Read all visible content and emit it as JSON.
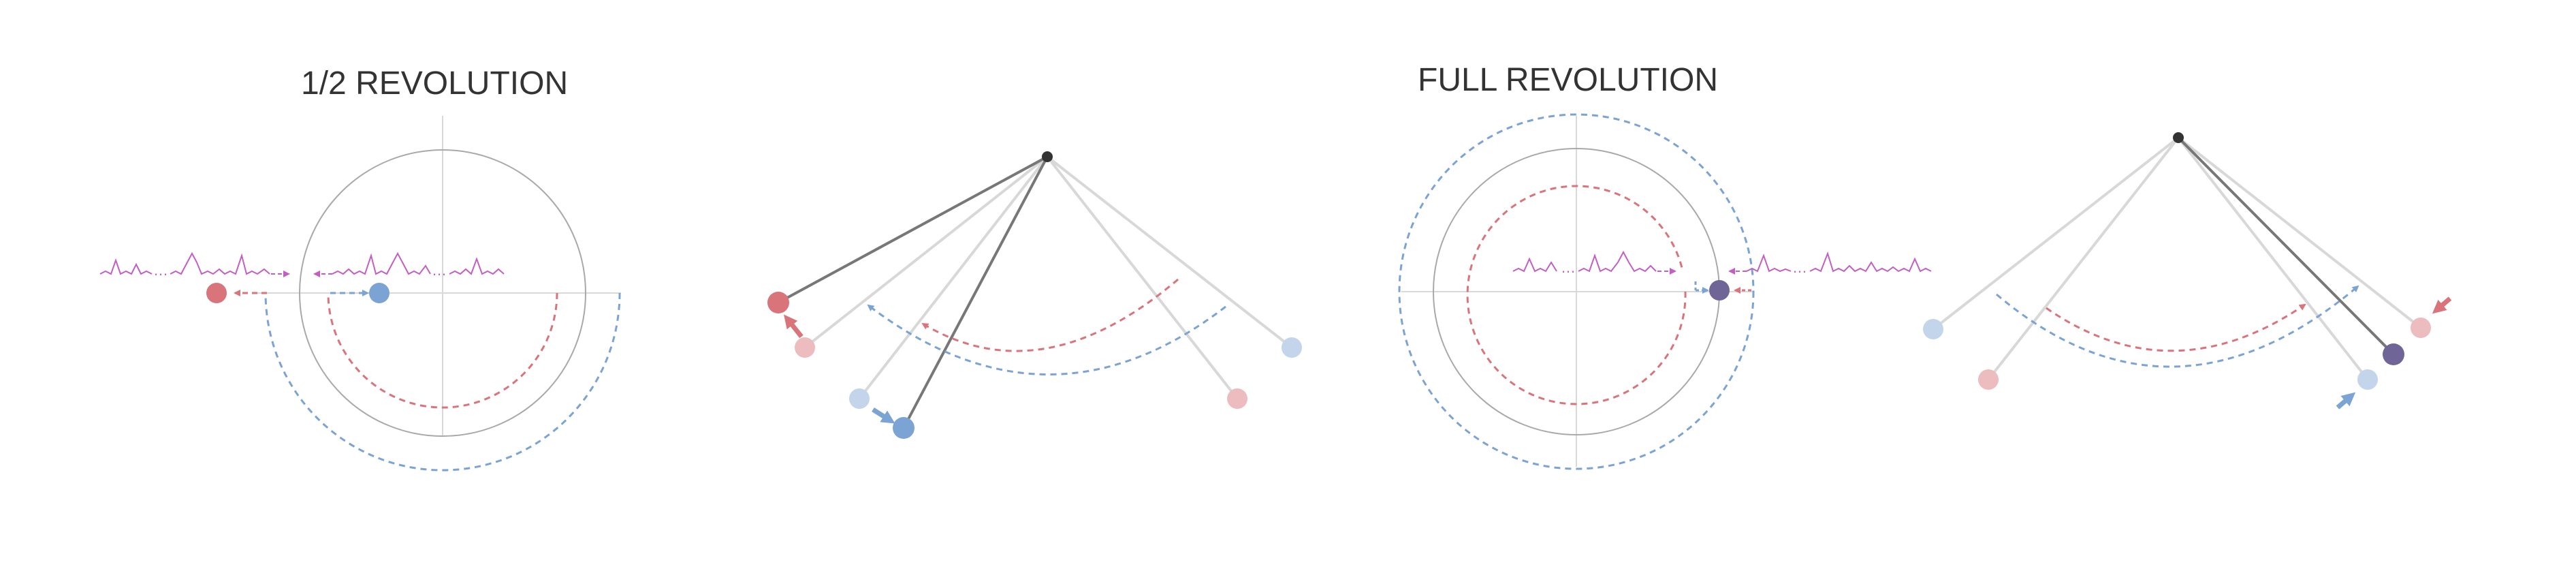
{
  "panels": [
    {
      "title": "1/2 REVOLUTION"
    },
    {
      "title": "FULL REVOLUTION"
    }
  ],
  "colors": {
    "red": "#d9747a",
    "red_faded": "#edbcbf",
    "blue": "#7ba3d4",
    "blue_faded": "#c3d5ea",
    "purple": "#6f6596",
    "pulse": "#c35ec2",
    "pendulum_string": "#777777",
    "pendulum_string_faded": "#d8d8d8",
    "axis": "#d9d9d9",
    "circle": "#a9a9a9",
    "pivot": "#333333"
  },
  "icons": [
    "red-ball",
    "blue-ball",
    "purple-ball",
    "direction-arrow",
    "pulse-train",
    "pendulum-pivot"
  ]
}
